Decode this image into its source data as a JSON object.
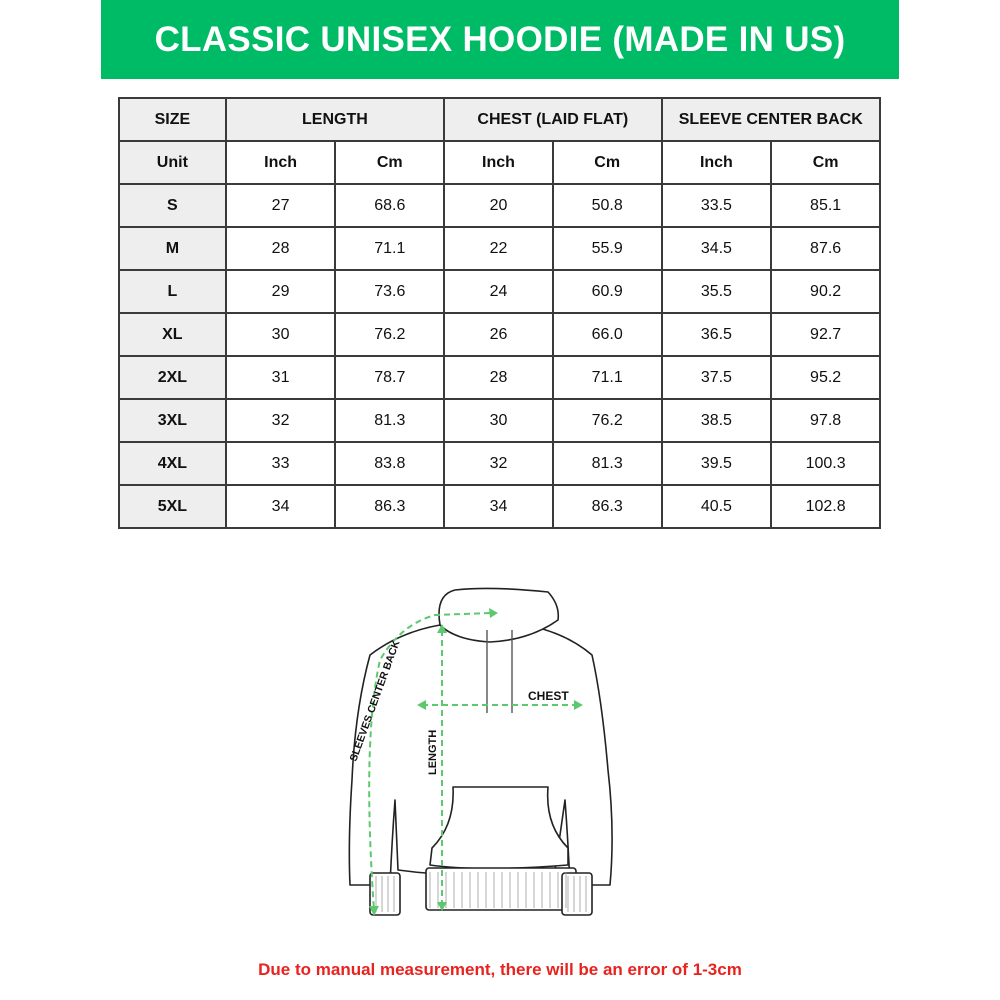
{
  "title": "CLASSIC UNISEX HOODIE (MADE IN US)",
  "colors": {
    "brand_green": "#00bb66",
    "note_red": "#e8231f",
    "arrow_green": "#5cc96e"
  },
  "table": {
    "headers": [
      "SIZE",
      "LENGTH",
      "CHEST (LAID FLAT)",
      "SLEEVE CENTER BACK"
    ],
    "unit_label": "Unit",
    "units": [
      "Inch",
      "Cm",
      "Inch",
      "Cm",
      "Inch",
      "Cm"
    ],
    "rows": [
      [
        "S",
        "27",
        "68.6",
        "20",
        "50.8",
        "33.5",
        "85.1"
      ],
      [
        "M",
        "28",
        "71.1",
        "22",
        "55.9",
        "34.5",
        "87.6"
      ],
      [
        "L",
        "29",
        "73.6",
        "24",
        "60.9",
        "35.5",
        "90.2"
      ],
      [
        "XL",
        "30",
        "76.2",
        "26",
        "66.0",
        "36.5",
        "92.7"
      ],
      [
        "2XL",
        "31",
        "78.7",
        "28",
        "71.1",
        "37.5",
        "95.2"
      ],
      [
        "3XL",
        "32",
        "81.3",
        "30",
        "76.2",
        "38.5",
        "97.8"
      ],
      [
        "4XL",
        "33",
        "83.8",
        "32",
        "81.3",
        "39.5",
        "100.3"
      ],
      [
        "5XL",
        "34",
        "86.3",
        "34",
        "86.3",
        "40.5",
        "102.8"
      ]
    ]
  },
  "diagram": {
    "chest_label": "CHEST",
    "length_label": "LENGTH",
    "sleeve_label": "SLEEVES CENTER BACK"
  },
  "note": "Due to manual measurement, there will be an error of 1-3cm"
}
